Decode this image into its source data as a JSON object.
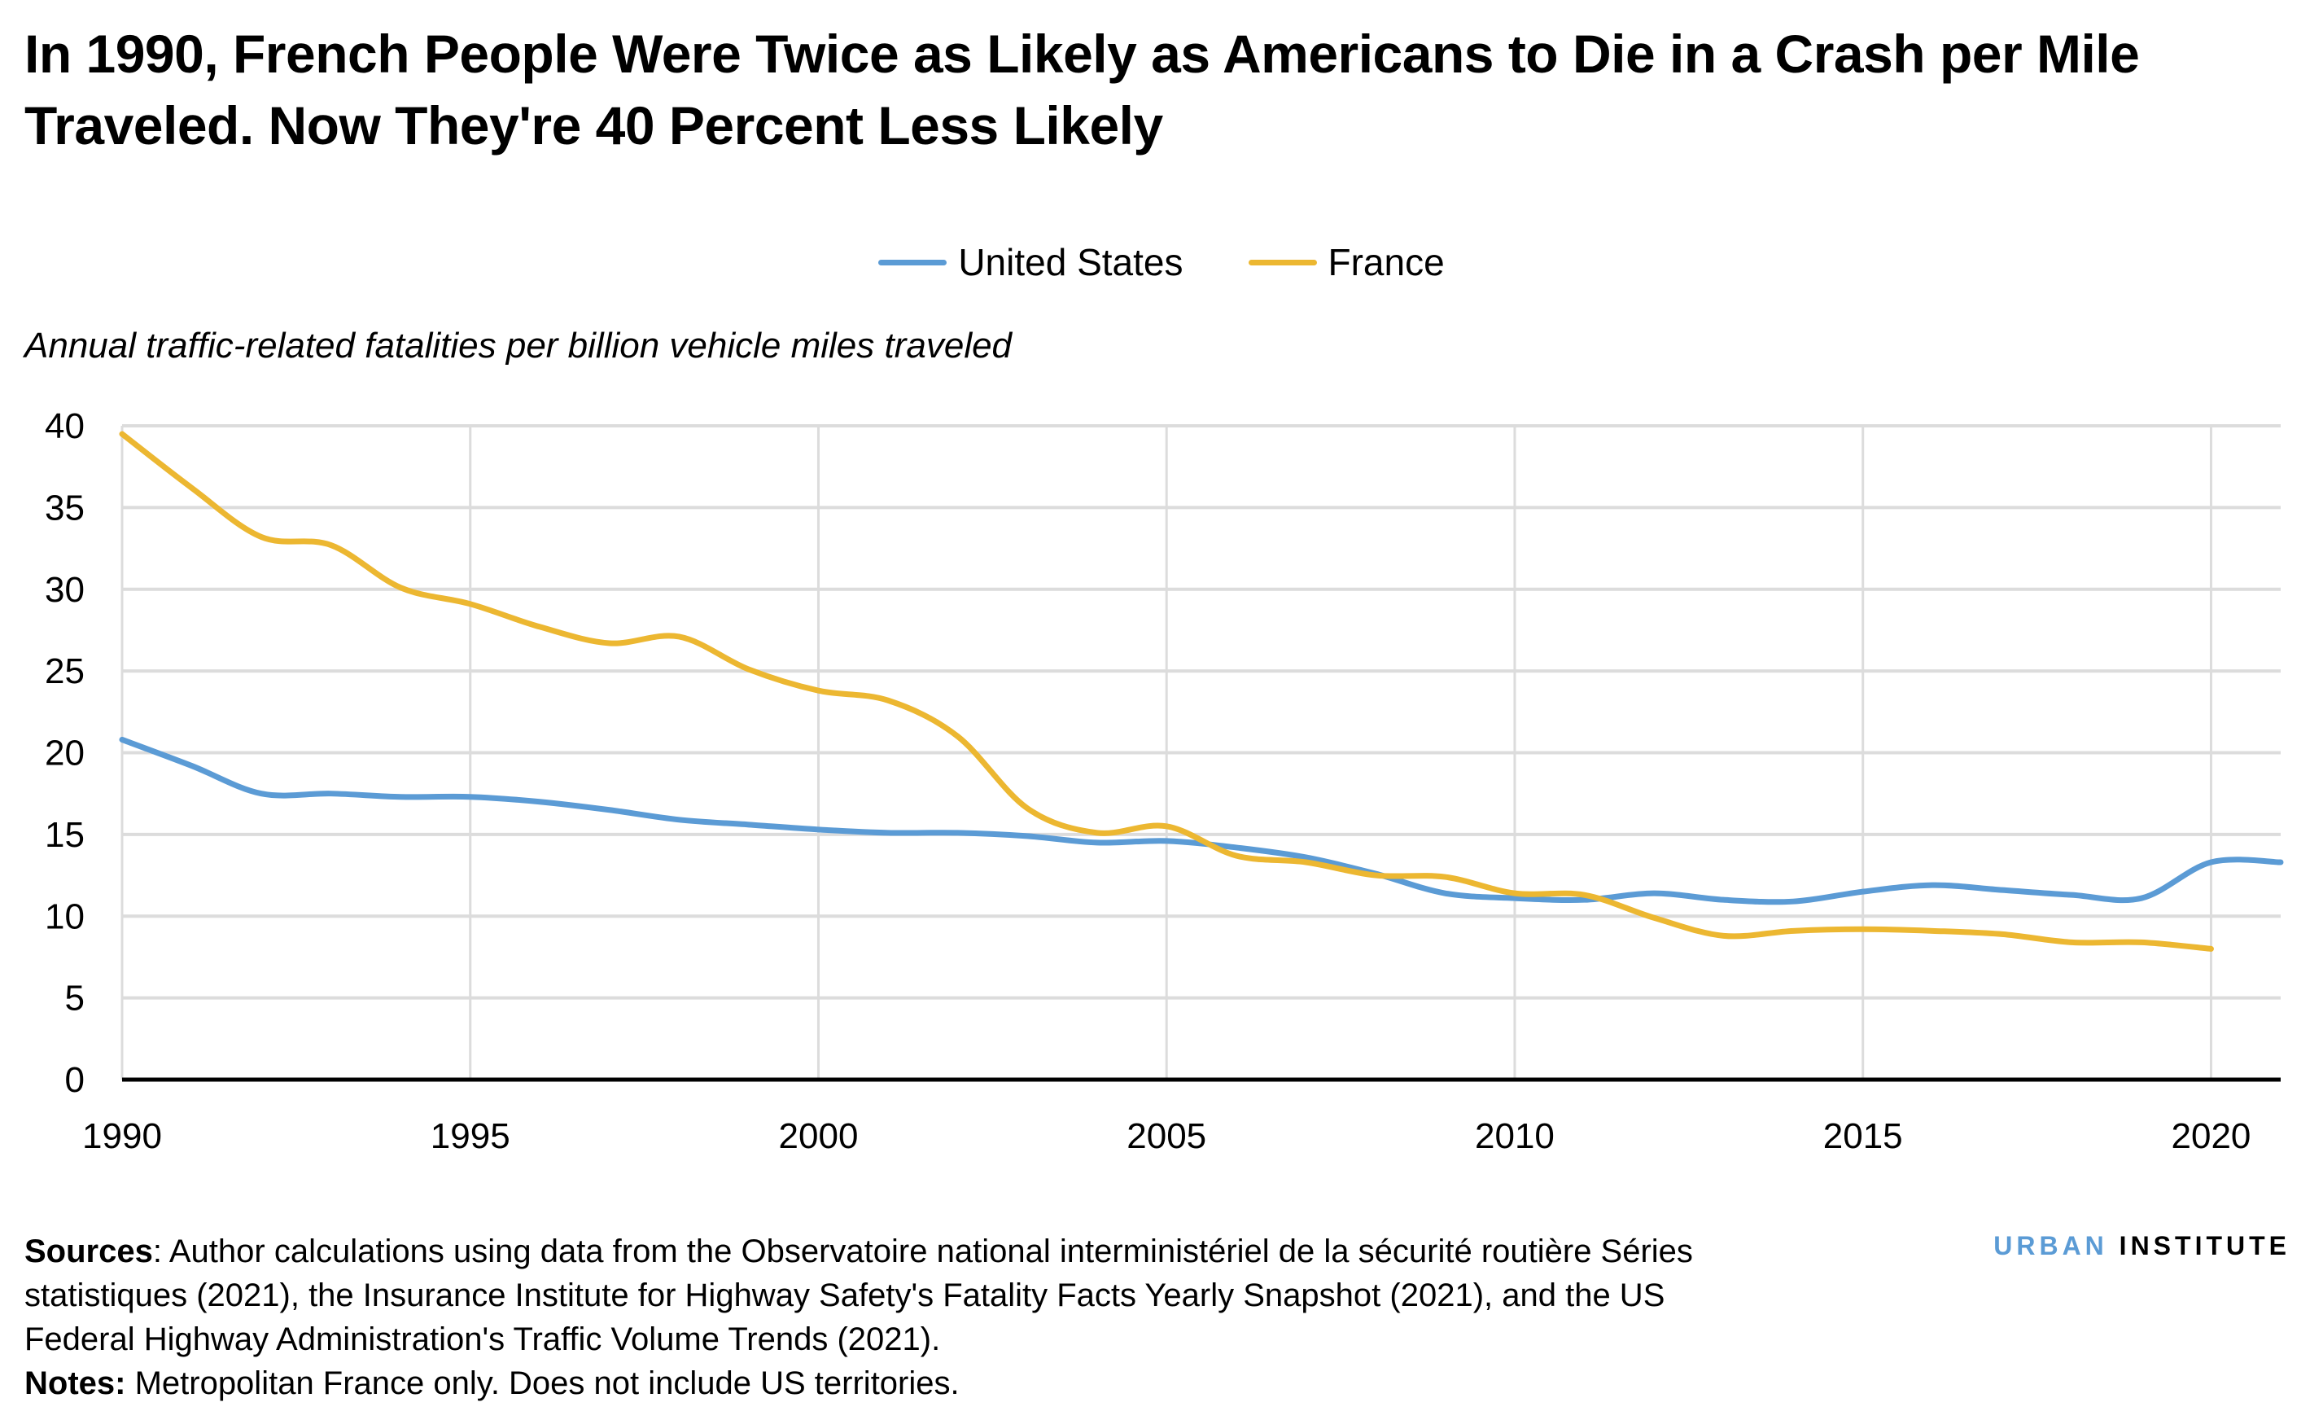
{
  "title": "In 1990, French People Were Twice as Likely as Americans to Die in a Crash per Mile Traveled. Now They're 40 Percent Less Likely",
  "footer": {
    "sources_label": "Sources",
    "sources_text": ": Author calculations using data from the Observatoire national interministériel de la sécurité routière Séries statistiques (2021), the Insurance Institute for Highway Safety's Fatality Facts Yearly Snapshot (2021), and the US Federal Highway Administration's Traffic Volume Trends (2021).",
    "notes_label": "Notes:",
    "notes_text": " Metropolitan France only. Does not include US territories."
  },
  "logo": {
    "part1": "URBAN",
    "part2": "INSTITUTE"
  },
  "chart_data": {
    "type": "line",
    "title": "In 1990, French People Were Twice as Likely as Americans to Die in a Crash per Mile Traveled. Now They're 40 Percent Less Likely",
    "ylabel": "Annual traffic-related fatalities per billion vehicle miles traveled",
    "xlabel": "",
    "xlim": [
      1990,
      2021
    ],
    "ylim": [
      0,
      40
    ],
    "xticks": [
      1990,
      1995,
      2000,
      2005,
      2010,
      2015,
      2020
    ],
    "yticks": [
      0,
      5,
      10,
      15,
      20,
      25,
      30,
      35,
      40
    ],
    "grid": true,
    "legend": "top-center",
    "smooth": true,
    "series": [
      {
        "name": "United States",
        "color": "#5b9bd5",
        "x": [
          1990,
          1991,
          1992,
          1993,
          1994,
          1995,
          1996,
          1997,
          1998,
          1999,
          2000,
          2001,
          2002,
          2003,
          2004,
          2005,
          2006,
          2007,
          2008,
          2009,
          2010,
          2011,
          2012,
          2013,
          2014,
          2015,
          2016,
          2017,
          2018,
          2019,
          2020,
          2021
        ],
        "values": [
          20.8,
          19.2,
          17.5,
          17.5,
          17.3,
          17.3,
          17.0,
          16.5,
          15.9,
          15.6,
          15.3,
          15.1,
          15.1,
          14.9,
          14.5,
          14.6,
          14.2,
          13.6,
          12.6,
          11.4,
          11.1,
          11.0,
          11.4,
          11.0,
          10.9,
          11.5,
          11.9,
          11.6,
          11.3,
          11.1,
          13.3,
          13.3
        ]
      },
      {
        "name": "France",
        "color": "#ecb731",
        "x": [
          1990,
          1991,
          1992,
          1993,
          1994,
          1995,
          1996,
          1997,
          1998,
          1999,
          2000,
          2001,
          2002,
          2003,
          2004,
          2005,
          2006,
          2007,
          2008,
          2009,
          2010,
          2011,
          2012,
          2013,
          2014,
          2015,
          2016,
          2017,
          2018,
          2019,
          2020
        ],
        "values": [
          39.5,
          36.2,
          33.2,
          32.7,
          30.1,
          29.1,
          27.7,
          26.7,
          27.1,
          25.1,
          23.8,
          23.2,
          21.0,
          16.6,
          15.1,
          15.5,
          13.7,
          13.3,
          12.5,
          12.4,
          11.4,
          11.3,
          9.9,
          8.8,
          9.1,
          9.2,
          9.1,
          8.9,
          8.4,
          8.4,
          8.0
        ]
      }
    ]
  }
}
